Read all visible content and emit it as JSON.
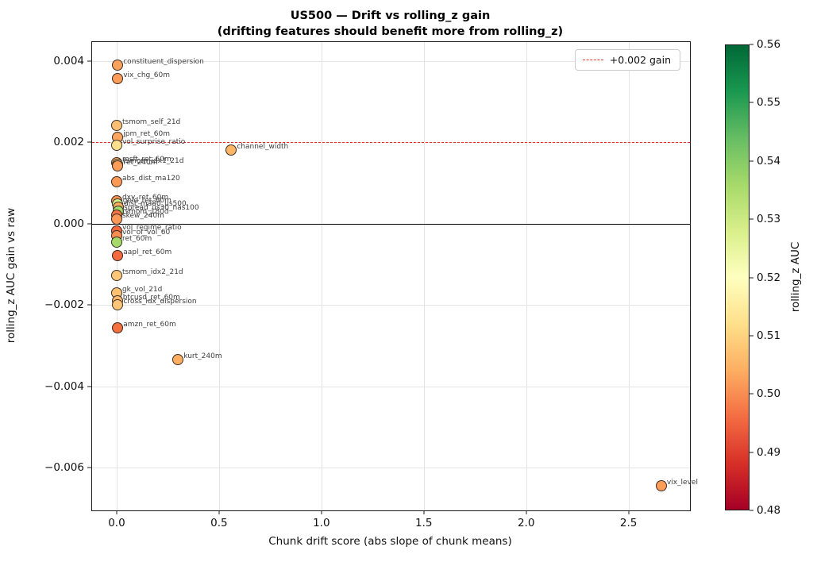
{
  "title": {
    "line1": "US500 — Drift vs rolling_z gain",
    "line2": "(drifting features should benefit more from rolling_z)"
  },
  "legend": {
    "label": "+0.002 gain",
    "line_color": "#e82c2c",
    "line_style": "dashed"
  },
  "chart_data": {
    "type": "scatter",
    "title": "US500 — Drift vs rolling_z gain (drifting features should benefit more from rolling_z)",
    "xlabel": "Chunk drift score (abs slope of chunk means)",
    "ylabel": "rolling_z AUC gain vs raw",
    "xlim": [
      -0.12,
      2.8
    ],
    "ylim": [
      -0.00705,
      0.00446
    ],
    "xticks": [
      0.0,
      0.5,
      1.0,
      1.5,
      2.0,
      2.5
    ],
    "xtick_labels": [
      "0.0",
      "0.5",
      "1.0",
      "1.5",
      "2.0",
      "2.5"
    ],
    "yticks": [
      0.004,
      0.002,
      0.0,
      -0.002,
      -0.004,
      -0.006
    ],
    "ytick_labels": [
      "0.004",
      "0.002",
      "0.000",
      "−0.002",
      "−0.004",
      "−0.006"
    ],
    "grid": true,
    "legend_position": "upper right",
    "reference_lines": [
      {
        "y": 0.0,
        "style": "solid",
        "color": "#000000",
        "label": ""
      },
      {
        "y": 0.002,
        "style": "dashed",
        "color": "#e82c2c",
        "label": "+0.002 gain"
      }
    ],
    "colorbar": {
      "label": "rolling_z AUC",
      "min": 0.48,
      "max": 0.56,
      "ticks": [
        "0.48",
        "0.49",
        "0.50",
        "0.51",
        "0.52",
        "0.53",
        "0.54",
        "0.55",
        "0.56"
      ],
      "colormap": "RdYlGn",
      "gradient_top_to_bottom": [
        "#006837",
        "#1a9850",
        "#66bd63",
        "#a6d96a",
        "#d9ef8b",
        "#ffffbf",
        "#fee08b",
        "#fdae61",
        "#f46d43",
        "#d73027",
        "#a50026"
      ]
    },
    "points": [
      {
        "label": "constituent_dispersion",
        "x": 0.005,
        "y": 0.0039,
        "color": "#FBA35D"
      },
      {
        "label": "vix_chg_60m",
        "x": 0.005,
        "y": 0.00357,
        "color": "#FB9D59"
      },
      {
        "label": "tsmom_self_21d",
        "x": 0.0,
        "y": 0.00242,
        "color": "#FDBF71"
      },
      {
        "label": "jpm_ret_60m",
        "x": 0.005,
        "y": 0.00211,
        "color": "#FBA55E"
      },
      {
        "label": "vol_surprise_ratio",
        "x": 0.0,
        "y": 0.00193,
        "color": "#FEDF8D"
      },
      {
        "label": "channel_width",
        "x": 0.56,
        "y": 0.0018,
        "color": "#FDB567"
      },
      {
        "label": "msft_ret_60m",
        "x": 0.0,
        "y": 0.0015,
        "color": "#FDAE61"
      },
      {
        "label": "tsmom_idx1_21d",
        "x": 0.003,
        "y": 0.00146,
        "color": "#FDC678"
      },
      {
        "label": "ret_240m",
        "x": 0.006,
        "y": 0.00142,
        "color": "#FB9D59"
      },
      {
        "label": "abs_dist_ma120",
        "x": 0.0,
        "y": 0.00102,
        "color": "#FA9856"
      },
      {
        "label": "dxy_ret_60m",
        "x": 0.0,
        "y": 0.00056,
        "color": "#F89051"
      },
      {
        "label": "gold_ret_60m",
        "x": 0.003,
        "y": 0.00048,
        "color": "#D9EF8B"
      },
      {
        "label": "dist_ma80_us500",
        "x": 0.008,
        "y": 0.0004,
        "color": "#FDAE61"
      },
      {
        "label": "spread_us30_nas100",
        "x": 0.008,
        "y": 0.0003,
        "color": "#A6D96A"
      },
      {
        "label": "tsmom_180d",
        "x": 0.0,
        "y": 0.00021,
        "color": "#F57547"
      },
      {
        "label": "skew_240m",
        "x": 0.0,
        "y": 0.0001,
        "color": "#FA9856"
      },
      {
        "label": "vol_regime_ratio",
        "x": 0.0,
        "y": -0.00018,
        "color": "#F4683E"
      },
      {
        "label": "vol_of_vol_60",
        "x": 0.0,
        "y": -0.0003,
        "color": "#F88D51"
      },
      {
        "label": "ret_60m",
        "x": 0.0,
        "y": -0.00046,
        "color": "#A6D96A"
      },
      {
        "label": "aapl_ret_60m",
        "x": 0.005,
        "y": -0.00078,
        "color": "#F46A40"
      },
      {
        "label": "tsmom_idx2_21d",
        "x": 0.0,
        "y": -0.00127,
        "color": "#FDC678"
      },
      {
        "label": "gk_vol_21d",
        "x": 0.0,
        "y": -0.0017,
        "color": "#FDC271"
      },
      {
        "label": "btcusd_ret_60m",
        "x": 0.003,
        "y": -0.0019,
        "color": "#FDB96B"
      },
      {
        "label": "cross_idx_dispersion",
        "x": 0.006,
        "y": -0.002,
        "color": "#FDC577"
      },
      {
        "label": "amzn_ret_60m",
        "x": 0.005,
        "y": -0.00256,
        "color": "#F4703F"
      },
      {
        "label": "kurt_240m",
        "x": 0.3,
        "y": -0.00335,
        "color": "#FDAE61"
      },
      {
        "label": "vix_level",
        "x": 2.66,
        "y": -0.00645,
        "color": "#FB9D59"
      }
    ]
  }
}
